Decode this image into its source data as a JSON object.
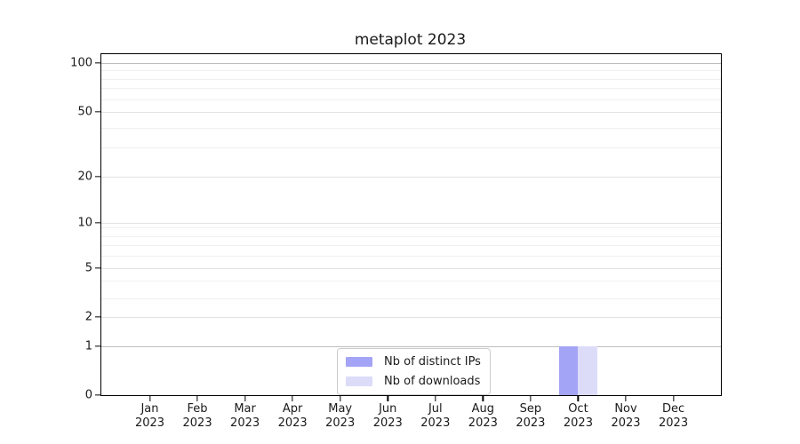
{
  "title": "metaplot 2023",
  "chart_data": {
    "type": "bar",
    "title": "metaplot 2023",
    "categories": [
      "Jan 2023",
      "Feb 2023",
      "Mar 2023",
      "Apr 2023",
      "May 2023",
      "Jun 2023",
      "Jul 2023",
      "Aug 2023",
      "Sep 2023",
      "Oct 2023",
      "Nov 2023",
      "Dec 2023"
    ],
    "series": [
      {
        "name": "Nb of distinct IPs",
        "color": "#a4a4f6",
        "values": [
          0,
          0,
          0,
          0,
          0,
          0,
          0,
          0,
          0,
          1,
          0,
          0
        ]
      },
      {
        "name": "Nb of downloads",
        "color": "#dcdcf9",
        "values": [
          0,
          0,
          0,
          0,
          0,
          0,
          0,
          0,
          0,
          1,
          0,
          0
        ]
      }
    ],
    "yscale": "symlog",
    "ytick_labels": [
      "100",
      "50",
      "20",
      "10",
      "5",
      "2",
      "1",
      "0"
    ],
    "ytick_values": [
      100,
      50,
      20,
      10,
      5,
      2,
      1,
      0
    ],
    "ylim": [
      0,
      115
    ],
    "grid": "both",
    "legend_position": "bottom-center-inside"
  },
  "legend": {
    "items": [
      {
        "label": "Nb of distinct IPs",
        "color": "#a4a4f6"
      },
      {
        "label": "Nb of downloads",
        "color": "#dcdcf9"
      }
    ]
  }
}
